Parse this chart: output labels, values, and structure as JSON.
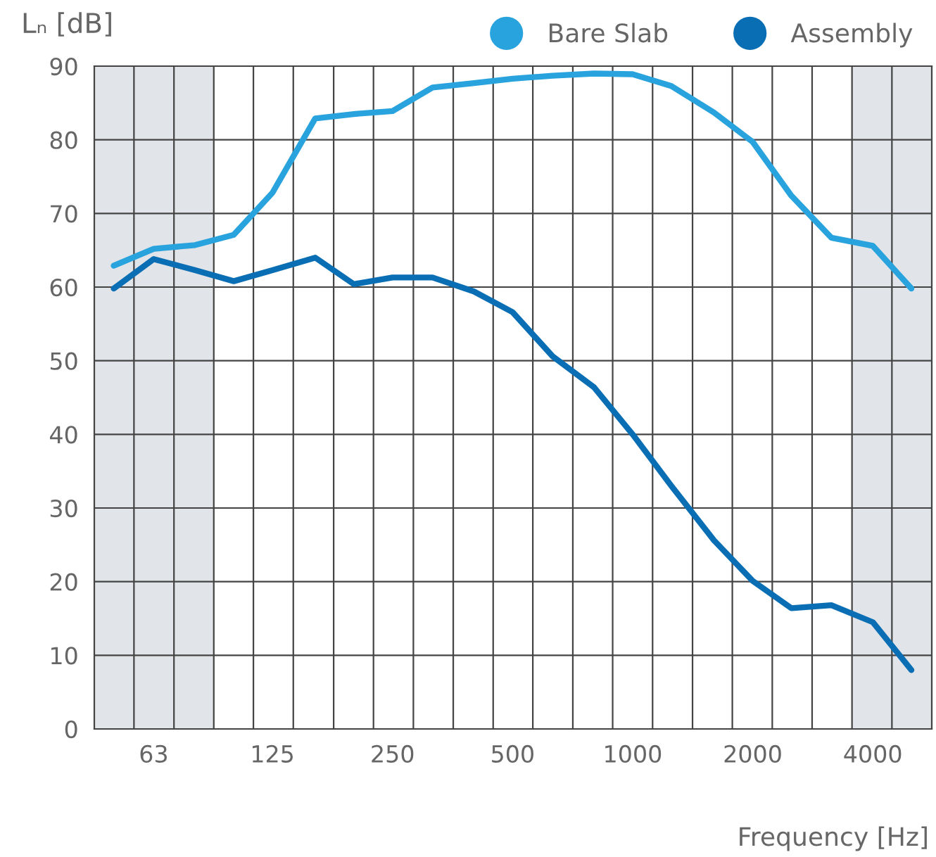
{
  "chart_data": {
    "type": "line",
    "ylabel": "Lₙ [dB]",
    "xlabel": "Frequency [Hz]",
    "log": "x",
    "x": [
      50,
      63,
      80,
      100,
      125,
      160,
      200,
      250,
      315,
      400,
      500,
      630,
      800,
      1000,
      1250,
      1600,
      2000,
      2500,
      3150,
      4000,
      5000
    ],
    "series": [
      {
        "name": "Bare Slab",
        "color": "#29a3dd",
        "values": [
          62.9,
          65.2,
          65.7,
          67.1,
          72.8,
          82.9,
          83.5,
          83.9,
          87.1,
          87.7,
          88.3,
          88.7,
          89.0,
          88.9,
          87.3,
          83.7,
          79.7,
          72.4,
          66.7,
          65.6,
          59.8
        ]
      },
      {
        "name": "Assembly",
        "color": "#0a6eb4",
        "values": [
          59.8,
          63.8,
          62.3,
          60.8,
          62.3,
          64.0,
          60.4,
          61.3,
          61.3,
          59.4,
          56.6,
          50.6,
          46.4,
          40.0,
          33.0,
          25.6,
          20.1,
          16.4,
          16.8,
          14.5,
          8.0
        ]
      }
    ],
    "xlim": [
      44.7,
      5623
    ],
    "xticks": [
      {
        "value": 56.2,
        "label": null
      },
      {
        "value": 63,
        "label": "63"
      },
      {
        "value": 70.8,
        "label": null
      },
      {
        "value": 89.1,
        "label": null
      },
      {
        "value": 112,
        "label": null
      },
      {
        "value": 125,
        "label": "125"
      },
      {
        "value": 141,
        "label": null
      },
      {
        "value": 178,
        "label": null
      },
      {
        "value": 224,
        "label": null
      },
      {
        "value": 250,
        "label": "250"
      },
      {
        "value": 282,
        "label": null
      },
      {
        "value": 355,
        "label": null
      },
      {
        "value": 447,
        "label": null
      },
      {
        "value": 500,
        "label": "500"
      },
      {
        "value": 562,
        "label": null
      },
      {
        "value": 708,
        "label": null
      },
      {
        "value": 891,
        "label": null
      },
      {
        "value": 1000,
        "label": "1000"
      },
      {
        "value": 1122,
        "label": null
      },
      {
        "value": 1413,
        "label": null
      },
      {
        "value": 1778,
        "label": null
      },
      {
        "value": 2000,
        "label": "2000"
      },
      {
        "value": 2239,
        "label": null
      },
      {
        "value": 2818,
        "label": null
      },
      {
        "value": 3548,
        "label": null
      },
      {
        "value": 4000,
        "label": "4000"
      },
      {
        "value": 4467,
        "label": null
      }
    ],
    "ylim": [
      0,
      90
    ],
    "yticks": [
      0,
      10,
      20,
      30,
      40,
      50,
      60,
      70,
      80,
      90
    ],
    "grid": true,
    "legend": "top right",
    "marker": "none",
    "line_style": "solid",
    "bands": [
      {
        "axis": "x",
        "from": 44.7,
        "to": 89.1,
        "color": "#e1e4e8"
      },
      {
        "axis": "x",
        "from": 3548,
        "to": 5623,
        "color": "#e1e4e8"
      }
    ]
  }
}
